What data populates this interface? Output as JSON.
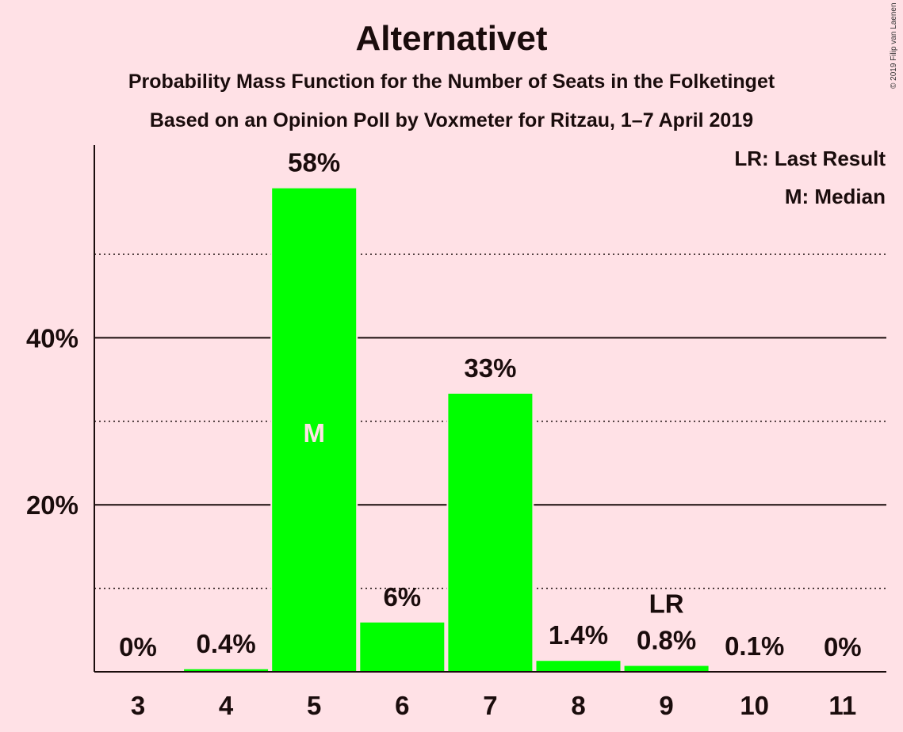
{
  "header": {
    "title": "Alternativet",
    "subtitle1": "Probability Mass Function for the Number of Seats in the Folketinget",
    "subtitle2": "Based on an Opinion Poll by Voxmeter for Ritzau, 1–7 April 2019",
    "copyright": "© 2019 Filip van Laenen"
  },
  "colors": {
    "background": "#FFE1E6",
    "bar": "#00FF00",
    "text": "#1a0c0c"
  },
  "chart_data": {
    "type": "bar",
    "title": "Alternativet",
    "categories": [
      "3",
      "4",
      "5",
      "6",
      "7",
      "8",
      "9",
      "10",
      "11"
    ],
    "values": [
      0,
      0.4,
      58,
      6,
      33.4,
      1.4,
      0.8,
      0.1,
      0
    ],
    "value_labels": [
      "0%",
      "0.4%",
      "58%",
      "6%",
      "33%",
      "1.4%",
      "0.8%",
      "0.1%",
      "0%"
    ],
    "ylim": [
      0,
      63
    ],
    "y_ticks_labeled": [
      {
        "value": 20,
        "label": "20%"
      },
      {
        "value": 40,
        "label": "40%"
      }
    ],
    "gridlines_solid": [
      20,
      40
    ],
    "gridlines_dotted": [
      10,
      30,
      50
    ],
    "xlabel": "",
    "ylabel": "",
    "markers": {
      "median": {
        "category": "5",
        "label": "M"
      },
      "last_result": {
        "category": "9",
        "label": "LR"
      }
    },
    "legend": [
      "LR: Last Result",
      "M: Median"
    ],
    "legend_position": "top-right"
  }
}
